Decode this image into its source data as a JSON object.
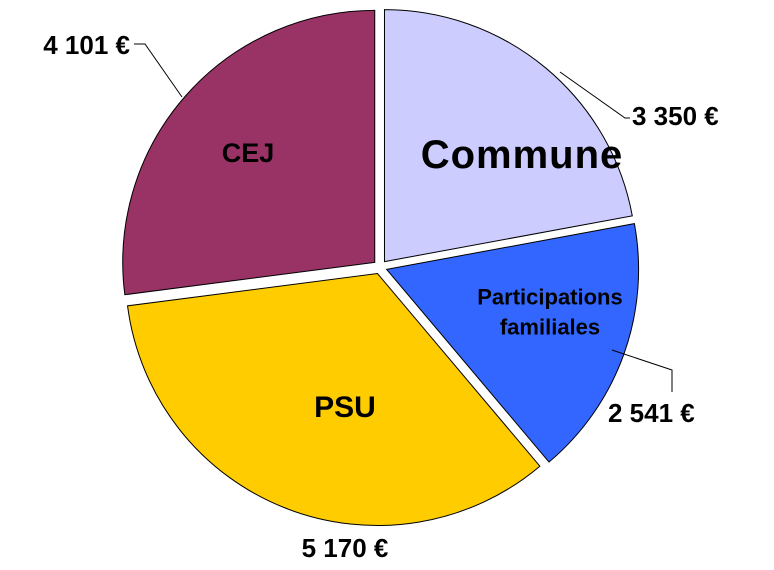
{
  "chart_data": {
    "type": "pie",
    "categories": [
      "Commune",
      "Participations familiales",
      "PSU",
      "CEJ"
    ],
    "values": [
      3350,
      2541,
      5170,
      4101
    ],
    "value_labels": [
      "3 350 €",
      "2 541 €",
      "5 170 €",
      "4 101 €"
    ],
    "colors": [
      "#ccccff",
      "#3366ff",
      "#ffcc00",
      "#993366"
    ]
  }
}
